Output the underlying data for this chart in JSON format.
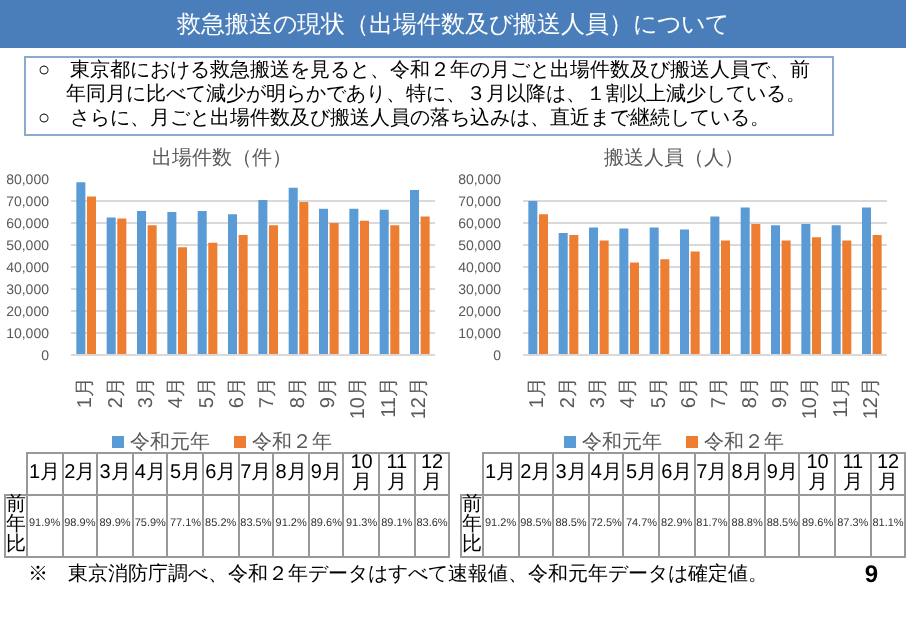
{
  "chart_data": [
    {
      "type": "other",
      "title": "救急搬送の現状（出場件数及び搬送人員）について",
      "annotations": [
        "○　東京都における救急搬送を見ると、令和２年の月ごと出場件数及び搬送人員で、前年同月に比べて減少が明らかであり、特に、３月以降は、１割以上減少している。",
        "○　さらに、月ごと出場件数及び搬送人員の落ち込みは、直近まで継続している。"
      ]
    },
    {
      "type": "bar",
      "title": "出場件数（件）",
      "categories": [
        "1月",
        "2月",
        "3月",
        "4月",
        "5月",
        "6月",
        "7月",
        "8月",
        "9月",
        "10月",
        "11月",
        "12月"
      ],
      "series": [
        {
          "name": "令和元年",
          "color": "#5b9bd5",
          "values": [
            78500,
            62500,
            65500,
            65000,
            65500,
            64000,
            70500,
            76000,
            66500,
            66500,
            66000,
            75000
          ]
        },
        {
          "name": "令和２年",
          "color": "#ed7d31",
          "values": [
            72000,
            62000,
            59000,
            49000,
            51000,
            54500,
            59000,
            69500,
            60000,
            61000,
            59000,
            63000
          ]
        }
      ],
      "ylim": [
        0,
        80000
      ],
      "yticks": [
        0,
        {
          "value": 10000,
          "label": "10,000"
        },
        {
          "value": 20000,
          "label": "20,000"
        },
        {
          "value": 30000,
          "label": "30,000"
        },
        {
          "value": 40000,
          "label": "40,000"
        },
        {
          "value": 50000,
          "label": "50,000"
        },
        {
          "value": 60000,
          "label": "60,000"
        },
        {
          "value": 70000,
          "label": "70,000"
        },
        {
          "value": 80000,
          "label": "80,000"
        }
      ],
      "grid": "y",
      "legend": "bottom",
      "annotations": [
        "前年比",
        "91.9%",
        "98.9%",
        "89.9%",
        "75.9%",
        "77.1%",
        "85.2%",
        "83.5%",
        "91.2%",
        "89.6%",
        "91.3%",
        "89.1%",
        "83.6%"
      ]
    },
    {
      "type": "bar",
      "title": "搬送人員（人）",
      "categories": [
        "1月",
        "2月",
        "3月",
        "4月",
        "5月",
        "6月",
        "7月",
        "8月",
        "9月",
        "10月",
        "11月",
        "12月"
      ],
      "series": [
        {
          "name": "令和元年",
          "color": "#5b9bd5",
          "values": [
            70000,
            55500,
            58000,
            57500,
            58000,
            57000,
            63000,
            67000,
            59000,
            59500,
            59000,
            67000
          ]
        },
        {
          "name": "令和２年",
          "color": "#ed7d31",
          "values": [
            64000,
            54500,
            52000,
            42000,
            43500,
            47000,
            52000,
            59500,
            52000,
            53500,
            52000,
            54500
          ]
        }
      ],
      "ylim": [
        0,
        80000
      ],
      "yticks": [
        0,
        {
          "value": 10000,
          "label": "10,000"
        },
        {
          "value": 20000,
          "label": "20,000"
        },
        {
          "value": 30000,
          "label": "30,000"
        },
        {
          "value": 40000,
          "label": "40,000"
        },
        {
          "value": 50000,
          "label": "50,000"
        },
        {
          "value": 60000,
          "label": "60,000"
        },
        {
          "value": 70000,
          "label": "70,000"
        },
        {
          "value": 80000,
          "label": "80,000"
        }
      ],
      "grid": "y",
      "legend": "bottom",
      "annotations": [
        "前年比",
        "91.2%",
        "98.5%",
        "88.5%",
        "72.5%",
        "74.7%",
        "82.9%",
        "81.7%",
        "88.8%",
        "88.5%",
        "89.6%",
        "87.3%",
        "81.1%"
      ]
    },
    {
      "type": "other",
      "annotations": [
        "※　東京消防庁調べ、令和２年データはすべて速報値、令和元年データは確定値。",
        "9"
      ]
    }
  ]
}
